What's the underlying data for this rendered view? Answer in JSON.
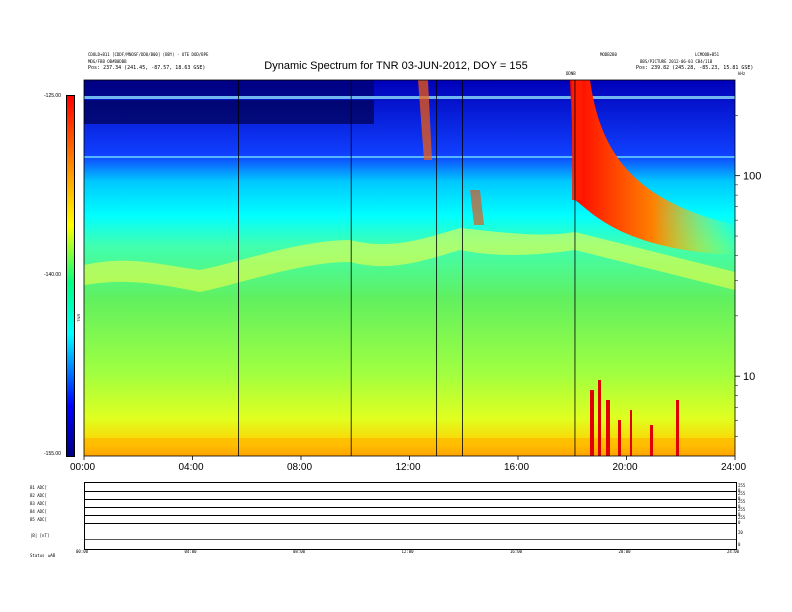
{
  "header": {
    "title": "Dynamic Spectrum for TNR 03-JUN-2012, DOY = 155",
    "left_line1": "CDOLD+B11 [CDDF/MNOSF/DD8/B00] (BBY) - UTE DOD/BPE",
    "left_line2": "MDG/FBB OB#B0DBB",
    "left_pos_label": "Pos:",
    "left_pos_value": "237.34 (241.45, -87.57, 18.63 GSE)",
    "right_line1": "MODB2B0",
    "right_line2": "LCMOOB+B51",
    "right_line3": "BBS/PICTURE 2012-06-03 CB4/11B",
    "right_pos_label": "Pos:",
    "right_pos_value": "239.82 (245.28, -85.23, 15.81 GSE)",
    "dot_marker": "DDNB",
    "corner_mark": "kHz"
  },
  "colorbar": {
    "ticks": [
      "-125.00",
      "-140.00",
      "-155.00"
    ],
    "ticks_db": [
      -125,
      -140,
      -155
    ],
    "range_db": [
      -155,
      -125
    ],
    "label": "TNR"
  },
  "chart_data": {
    "type": "heatmap",
    "title": "Dynamic Spectrum for TNR 03-JUN-2012, DOY = 155",
    "x_ticks": [
      "00:00",
      "04:00",
      "08:00",
      "12:00",
      "16:00",
      "20:00",
      "24:00"
    ],
    "x_range_hours": [
      0,
      24
    ],
    "y_ticks": [
      "100",
      "10"
    ],
    "y_tick_values_khz": [
      100,
      10
    ],
    "y_scale": "log",
    "y_range_khz": [
      4,
      300
    ],
    "colormap": [
      "#000080",
      "#0000ff",
      "#00ffff",
      "#00ff80",
      "#ffff00",
      "#ff8000",
      "#ff0000"
    ],
    "vertical_markers_hours": [
      5.7,
      9.85,
      13.0,
      13.95,
      18.1
    ],
    "features": [
      {
        "kind": "background",
        "below_khz": 30,
        "level": "green/yellow"
      },
      {
        "kind": "plasma-line",
        "khz_start": 20,
        "khz_end": 30,
        "hours": [
          0,
          24
        ]
      },
      {
        "kind": "type-III-burst",
        "start_hour": 18.1,
        "peak_khz": 300
      },
      {
        "kind": "low-frequency-bursts",
        "hours": [
          18.5,
          22.5
        ],
        "below_khz": 8
      }
    ]
  },
  "panels": {
    "rows": [
      {
        "label": "B1 ADC[",
        "right_top": "255",
        "right_bottom": "0"
      },
      {
        "label": "B2 ADC[",
        "right_top": "255",
        "right_bottom": "0"
      },
      {
        "label": "B3 ADC[",
        "right_top": "255",
        "right_bottom": "0"
      },
      {
        "label": "B4 ADC[",
        "right_top": "255",
        "right_bottom": "0"
      },
      {
        "label": "B5 ADC[",
        "right_top": "255",
        "right_bottom": "0"
      },
      {
        "label": "|B| [nT]",
        "right_top": "20",
        "right_bottom": "0"
      }
    ],
    "x_ticks": [
      "00:00",
      "04:00",
      "08:00",
      "12:00",
      "16:00",
      "20:00",
      "24:00"
    ],
    "status_label": "Status",
    "status_value": "wAB"
  }
}
